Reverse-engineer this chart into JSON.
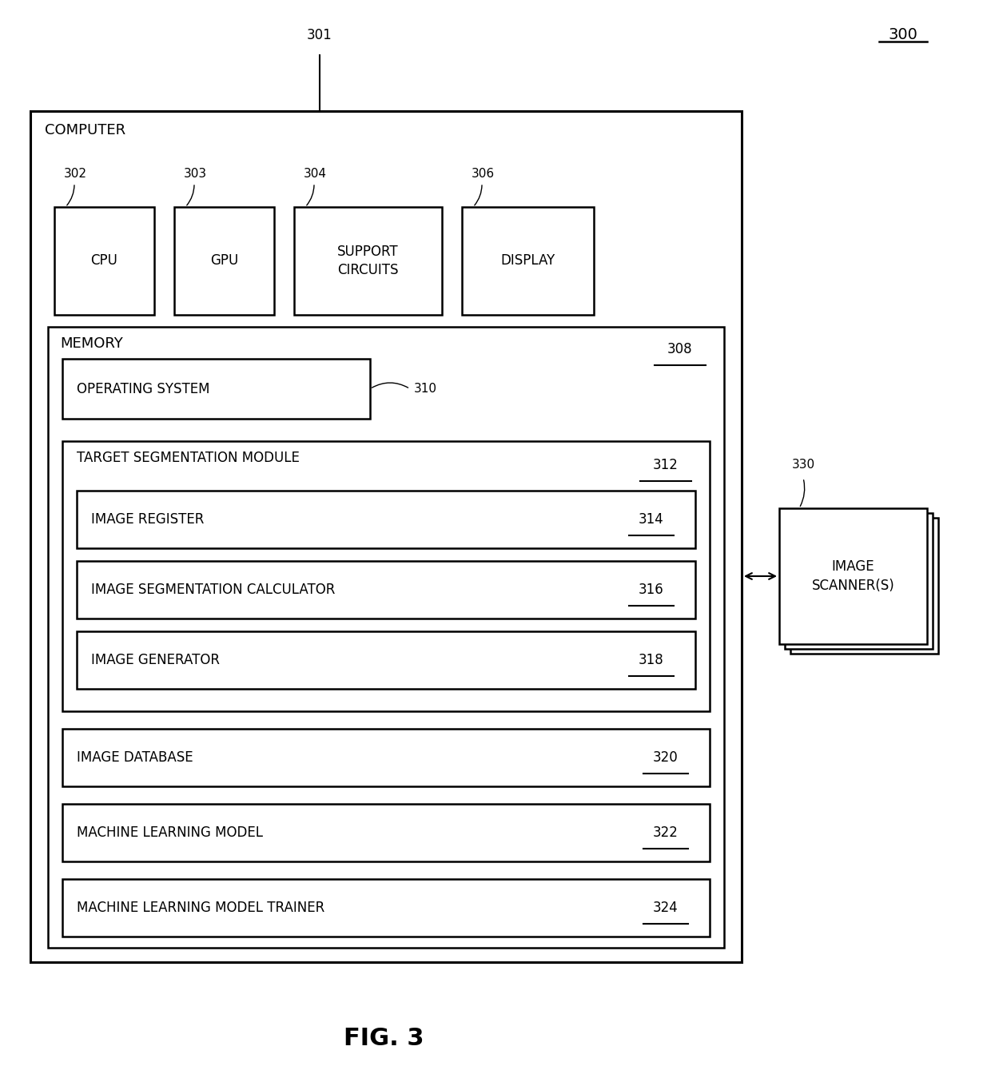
{
  "fig_width": 12.4,
  "fig_height": 13.54,
  "bg_color": "#ffffff",
  "fig_label": "FIG. 3",
  "fig_number": "300",
  "computer_label": "301",
  "computer_box_label": "COMPUTER",
  "memory_label": "308",
  "memory_box_label": "MEMORY",
  "os_label": "OPERATING SYSTEM",
  "os_ref": "310",
  "tsm_label": "TARGET SEGMENTATION MODULE",
  "tsm_ref": "312",
  "inner_boxes": [
    {
      "label": "IMAGE REGISTER",
      "ref": "314"
    },
    {
      "label": "IMAGE SEGMENTATION CALCULATOR",
      "ref": "316"
    },
    {
      "label": "IMAGE GENERATOR",
      "ref": "318"
    }
  ],
  "outer_memory_boxes": [
    {
      "label": "IMAGE DATABASE",
      "ref": "320"
    },
    {
      "label": "MACHINE LEARNING MODEL",
      "ref": "322"
    },
    {
      "label": "MACHINE LEARNING MODEL TRAINER",
      "ref": "324"
    }
  ],
  "scanner_label": "IMAGE\nSCANNER(S)",
  "scanner_ref": "330",
  "top_boxes": [
    {
      "label": "CPU",
      "ref": "302",
      "two_line": false
    },
    {
      "label": "GPU",
      "ref": "303",
      "two_line": false
    },
    {
      "label": "SUPPORT\nCIRCUITS",
      "ref": "304",
      "two_line": true
    },
    {
      "label": "DISPLAY",
      "ref": "306",
      "two_line": false
    }
  ]
}
